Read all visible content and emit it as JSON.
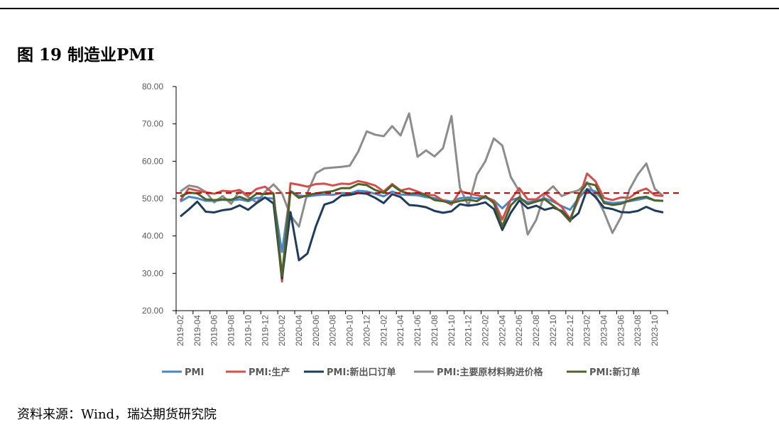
{
  "title": "图 19 制造业PMI",
  "source": "资料来源：Wind，瑞达期货研究院",
  "chart_data": {
    "type": "line",
    "title": "图 19 制造业PMI",
    "xlabel": "",
    "ylabel": "",
    "ylim": [
      20,
      80
    ],
    "yticks": [
      "20.00",
      "30.00",
      "40.00",
      "50.00",
      "60.00",
      "70.00",
      "80.00"
    ],
    "xticks": [
      "2019-02",
      "2019-04",
      "2019-06",
      "2019-08",
      "2019-10",
      "2019-12",
      "2020-02",
      "2020-04",
      "2020-06",
      "2020-08",
      "2020-10",
      "2020-12",
      "2021-02",
      "2021-04",
      "2021-06",
      "2021-08",
      "2021-10",
      "2021-12",
      "2022-02",
      "2022-04",
      "2022-06",
      "2022-08",
      "2022-10",
      "2022-12",
      "2023-02",
      "2023-04",
      "2023-06",
      "2023-08",
      "2023-10"
    ],
    "x_start": "2019-02",
    "x_end": "2023-11",
    "reference_line": {
      "value": 51.5,
      "color": "#c00000",
      "style": "dashed"
    },
    "legend_position": "bottom",
    "series": [
      {
        "name": "PMI",
        "color": "#4a86c8",
        "values": [
          49.2,
          50.5,
          50.1,
          49.4,
          49.4,
          49.7,
          49.5,
          49.8,
          49.3,
          50.2,
          50.2,
          50.0,
          35.7,
          52.0,
          50.8,
          50.6,
          50.9,
          51.1,
          51.0,
          51.5,
          51.4,
          52.1,
          51.9,
          51.3,
          50.6,
          51.9,
          51.1,
          51.0,
          50.9,
          50.4,
          50.1,
          49.6,
          49.2,
          50.1,
          50.3,
          50.1,
          50.2,
          49.5,
          47.4,
          49.6,
          50.2,
          49.0,
          49.4,
          50.1,
          49.2,
          48.0,
          47.0,
          50.1,
          52.6,
          51.9,
          49.2,
          48.8,
          49.0,
          49.3,
          49.7,
          50.2,
          49.5,
          49.4
        ]
      },
      {
        "name": "PMI:生产",
        "color": "#d0504d",
        "values": [
          49.5,
          52.7,
          52.1,
          51.7,
          51.3,
          52.1,
          51.9,
          52.3,
          50.8,
          52.6,
          53.2,
          51.3,
          27.8,
          54.1,
          53.7,
          53.2,
          53.9,
          54.0,
          53.5,
          54.0,
          53.9,
          54.7,
          54.2,
          53.5,
          51.9,
          53.9,
          52.2,
          52.7,
          51.9,
          51.0,
          50.9,
          49.5,
          48.4,
          52.0,
          51.4,
          50.9,
          50.4,
          49.5,
          44.4,
          49.7,
          52.8,
          49.8,
          49.8,
          51.5,
          49.6,
          47.8,
          44.6,
          49.8,
          56.7,
          54.6,
          50.2,
          49.6,
          50.3,
          50.2,
          51.9,
          52.7,
          50.9,
          50.7
        ]
      },
      {
        "name": "PMI:新出口订单",
        "color": "#1f3b5e",
        "values": [
          45.2,
          47.1,
          49.2,
          46.5,
          46.3,
          46.9,
          47.2,
          48.2,
          47.0,
          48.8,
          50.3,
          48.7,
          28.7,
          46.4,
          33.5,
          35.3,
          42.6,
          48.4,
          49.1,
          50.8,
          51.0,
          51.5,
          51.3,
          50.2,
          48.8,
          51.2,
          50.4,
          48.3,
          48.1,
          47.7,
          46.7,
          46.2,
          46.6,
          48.5,
          48.1,
          48.4,
          49.0,
          47.2,
          41.6,
          46.2,
          49.5,
          47.4,
          48.1,
          47.0,
          47.6,
          46.7,
          44.2,
          46.1,
          52.4,
          50.4,
          47.6,
          47.2,
          46.4,
          46.3,
          46.7,
          47.8,
          46.8,
          46.3
        ]
      },
      {
        "name": "PMI:主要原材料购进价格",
        "color": "#8c8c8c",
        "values": [
          51.9,
          53.5,
          53.1,
          51.8,
          49.0,
          50.7,
          48.6,
          52.2,
          50.4,
          49.0,
          51.8,
          53.8,
          51.4,
          45.5,
          42.5,
          51.6,
          56.8,
          58.1,
          58.3,
          58.5,
          58.8,
          62.6,
          68.0,
          67.1,
          66.7,
          69.4,
          66.9,
          72.8,
          61.2,
          62.9,
          61.3,
          63.5,
          72.1,
          52.9,
          48.1,
          56.4,
          60.0,
          66.1,
          64.2,
          55.8,
          52.0,
          40.4,
          44.3,
          51.3,
          53.3,
          50.7,
          51.6,
          52.2,
          54.4,
          50.9,
          46.4,
          40.8,
          45.0,
          52.4,
          56.5,
          59.4,
          52.6,
          50.7
        ]
      },
      {
        "name": "PMI:新订单",
        "color": "#4f6228",
        "values": [
          50.6,
          51.6,
          51.4,
          49.8,
          49.6,
          49.8,
          49.7,
          50.5,
          49.6,
          51.3,
          51.2,
          51.4,
          29.3,
          52.0,
          50.2,
          50.9,
          51.4,
          51.7,
          52.0,
          52.8,
          52.8,
          53.9,
          53.6,
          52.3,
          51.5,
          53.6,
          52.0,
          51.3,
          51.5,
          50.9,
          49.6,
          49.3,
          48.8,
          49.4,
          49.7,
          49.3,
          50.7,
          48.8,
          42.6,
          48.2,
          50.4,
          48.5,
          49.2,
          49.8,
          48.1,
          46.4,
          43.9,
          50.9,
          54.1,
          53.6,
          48.8,
          48.3,
          48.6,
          49.5,
          50.2,
          50.5,
          49.5,
          49.4
        ]
      }
    ]
  }
}
